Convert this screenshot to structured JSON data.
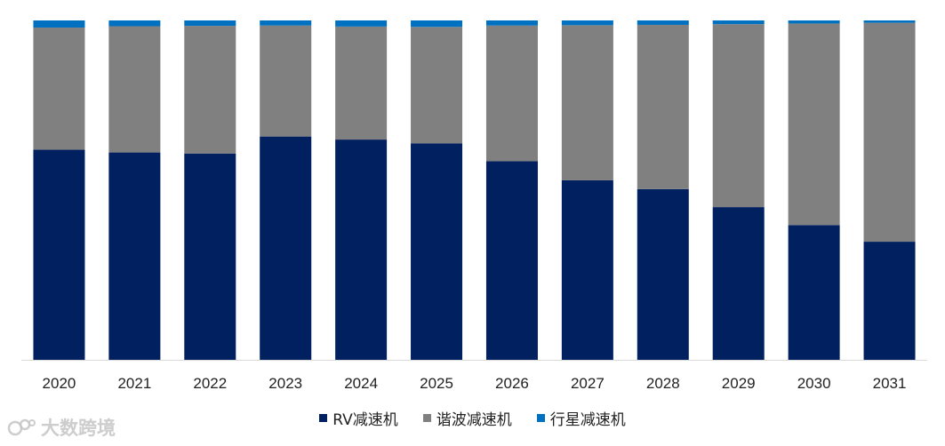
{
  "chart_data": {
    "type": "bar",
    "stacked": "percent",
    "categories": [
      "2020",
      "2021",
      "2022",
      "2023",
      "2024",
      "2025",
      "2026",
      "2027",
      "2028",
      "2029",
      "2030",
      "2031"
    ],
    "series": [
      {
        "name": "RV减速机",
        "color": "#002060",
        "values": [
          61.9,
          61.1,
          60.8,
          65.8,
          64.9,
          63.8,
          58.5,
          52.9,
          50.3,
          45.0,
          39.7,
          34.8
        ]
      },
      {
        "name": "谐波减速机",
        "color": "#808080",
        "values": [
          36.0,
          37.2,
          37.6,
          32.7,
          33.3,
          34.3,
          40.0,
          45.7,
          48.4,
          53.9,
          59.4,
          64.5
        ]
      },
      {
        "name": "行星减速机",
        "color": "#0070C0",
        "values": [
          2.1,
          1.7,
          1.6,
          1.5,
          1.8,
          1.9,
          1.5,
          1.4,
          1.3,
          1.1,
          0.9,
          0.7
        ]
      }
    ],
    "ylim": [
      0,
      100
    ],
    "grid": false,
    "legend_position": "bottom"
  },
  "watermark": "大数跨境"
}
